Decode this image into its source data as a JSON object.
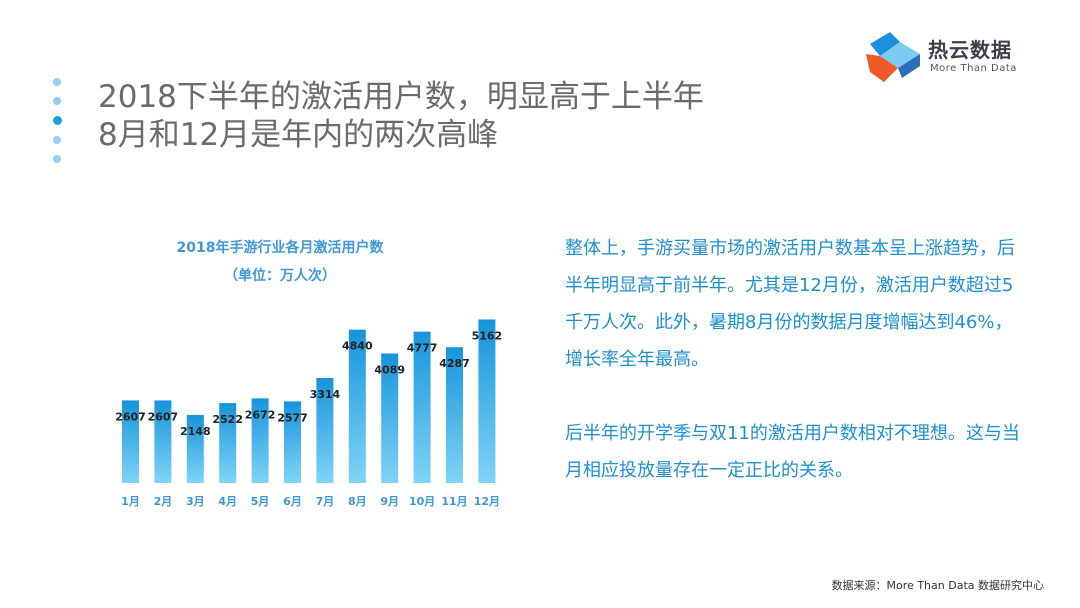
{
  "slide": {
    "title_line1": "2018下半年的激活用户数，明显高于上半年",
    "title_line2": "8月和12月是年内的两次高峰"
  },
  "logo": {
    "name": "热云数据",
    "tagline": "More Than Data"
  },
  "body": {
    "paragraph1": "整体上，手游买量市场的激活用户数基本呈上涨趋势，后半年明显高于前半年。尤其是12月份，激活用户数超过5千万人次。此外，暑期8月份的数据月度增幅达到46%，增长率全年最高。",
    "paragraph2": "后半年的开学季与双11的激活用户数相对不理想。这与当月相应投放量存在一定正比的关系。"
  },
  "source": "数据来源：More Than Data 数据研究中心",
  "colors": {
    "accent": "#1aa0e0",
    "bar_top": "#1794dc",
    "bar_bottom": "#7fd4f5",
    "text_blue": "#1e8fd0"
  },
  "chart_data": {
    "type": "bar",
    "title": "2018年手游行业各月激活用户数",
    "subtitle": "（单位：万人次）",
    "categories": [
      "1月",
      "2月",
      "3月",
      "4月",
      "5月",
      "6月",
      "7月",
      "8月",
      "9月",
      "10月",
      "11月",
      "12月"
    ],
    "values": [
      2607,
      2607,
      2148,
      2522,
      2672,
      2577,
      3314,
      4840,
      4089,
      4777,
      4287,
      5162
    ],
    "ylim": [
      0,
      5500
    ],
    "grid": false,
    "legend": "none"
  }
}
